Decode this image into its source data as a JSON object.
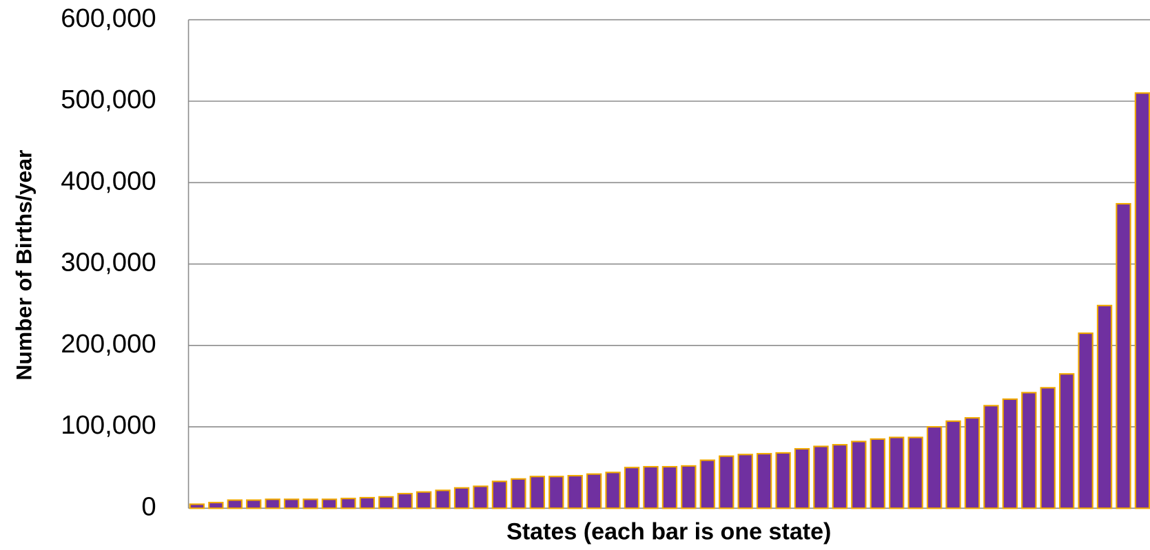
{
  "chart_data": {
    "type": "bar",
    "x_label": "States (each bar is one state)",
    "y_label": "Number of Births/year",
    "categories": [
      null,
      null,
      null,
      null,
      null,
      null,
      null,
      null,
      null,
      null,
      null,
      null,
      null,
      null,
      null,
      null,
      null,
      null,
      null,
      null,
      null,
      null,
      null,
      null,
      null,
      null,
      null,
      null,
      null,
      null,
      null,
      null,
      null,
      null,
      null,
      null,
      null,
      null,
      null,
      null,
      null,
      null,
      null,
      null,
      null,
      null,
      null,
      null,
      null,
      null,
      null
    ],
    "values": [
      5000,
      7000,
      10000,
      10000,
      11000,
      11000,
      11000,
      11000,
      12000,
      13000,
      14000,
      18000,
      20000,
      22000,
      25000,
      27000,
      33000,
      36000,
      39000,
      39000,
      40000,
      42000,
      44000,
      50000,
      51000,
      51000,
      52000,
      59000,
      64000,
      66000,
      67000,
      68000,
      73000,
      76000,
      78000,
      82000,
      85000,
      87000,
      87000,
      100000,
      107000,
      111000,
      126000,
      134000,
      142000,
      148000,
      165000,
      215000,
      249000,
      374000,
      510000
    ],
    "color": "#7030a0",
    "edge_color": "#f0a800",
    "ylim": [
      0,
      600000
    ],
    "yticks": [
      0,
      {
        "value": 100000,
        "label": "100,000"
      },
      {
        "value": 200000,
        "label": "200,000"
      },
      {
        "value": 300000,
        "label": "300,000"
      },
      {
        "value": 400000,
        "label": "400,000"
      },
      {
        "value": 500000,
        "label": "500,000"
      },
      {
        "value": 600000,
        "label": "600,000"
      }
    ],
    "grid": true
  }
}
